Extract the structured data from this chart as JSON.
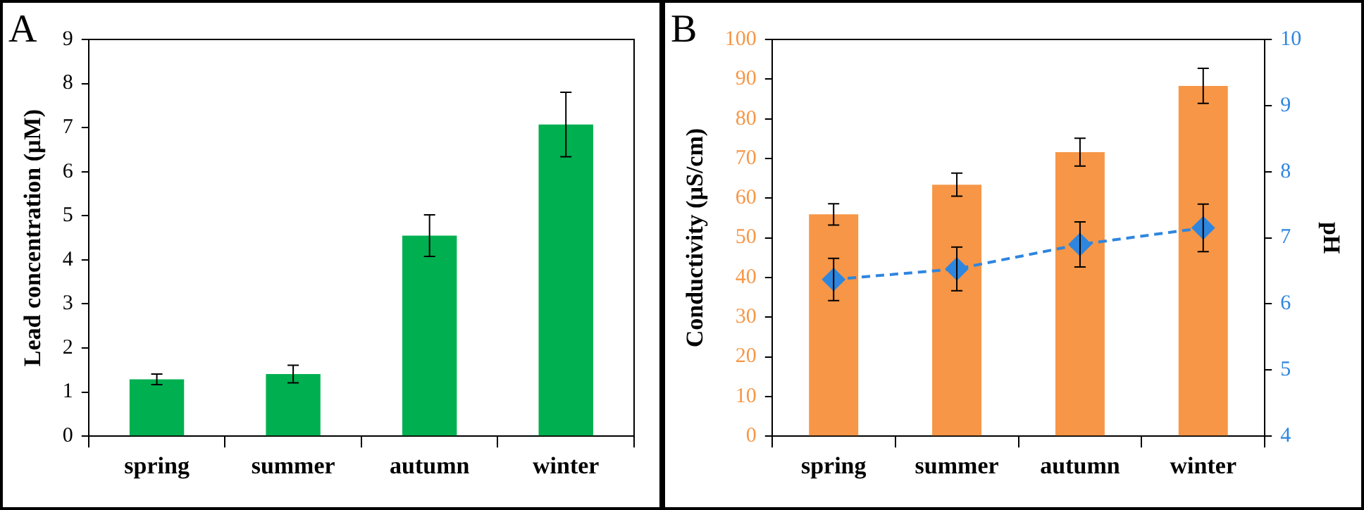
{
  "chart_data": [
    {
      "type": "bar",
      "ylabel": "Lead concentration (µM)",
      "annotations": [
        "A"
      ],
      "categories": [
        "spring",
        "summer",
        "autumn",
        "winter"
      ],
      "series": [
        {
          "color": "#00b050",
          "values": [
            1.29,
            1.41,
            4.55,
            7.07
          ],
          "errors": [
            0.12,
            0.2,
            0.47,
            0.73
          ]
        }
      ],
      "ylim": [
        0,
        9
      ],
      "yticks": [
        0,
        1,
        2,
        3,
        4,
        5,
        6,
        7,
        8,
        9
      ],
      "grid": false,
      "legend": false
    },
    {
      "type": "bar",
      "ylabel": "Conductivity (µS/cm)",
      "y2label": "pH",
      "annotations": [
        "B"
      ],
      "categories": [
        "spring",
        "summer",
        "autumn",
        "winter"
      ],
      "series": [
        {
          "color": "#f79646",
          "values": [
            55.9,
            63.4,
            71.6,
            88.3
          ],
          "errors": [
            2.7,
            2.9,
            3.5,
            4.4
          ]
        },
        {
          "type": "line",
          "axis": "y2",
          "color": "#2e86de",
          "values": [
            6.37,
            6.53,
            6.9,
            7.15
          ],
          "errors": [
            0.32,
            0.33,
            0.34,
            0.36
          ],
          "marker": "diamond",
          "line_style": "dashed"
        }
      ],
      "ylim": [
        0,
        100
      ],
      "yticks": [
        0,
        10,
        20,
        30,
        40,
        50,
        60,
        70,
        80,
        90,
        100
      ],
      "y2lim": [
        4,
        10
      ],
      "y2ticks": [
        4,
        5,
        6,
        7,
        8,
        9,
        10
      ],
      "grid": false,
      "legend": false
    }
  ]
}
